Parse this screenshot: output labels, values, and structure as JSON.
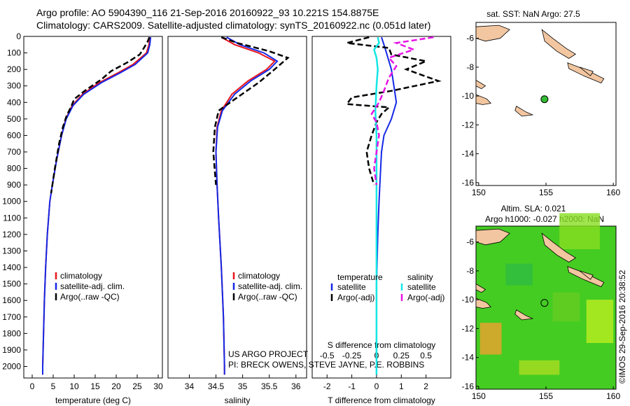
{
  "titles": {
    "line1": "Argo profile: AO 5904390_116 21-Sep-2016 20160922_93 10.221S 154.8875E",
    "line2": "Climatology: CARS2009. Satellite-adjusted climatology: synTS_20160922.nc (0.051d later)"
  },
  "stamp": "©IMOS 29-Sep-2016 20:38:52",
  "colors": {
    "climatology": "#e8141e",
    "satellite": "#1428e6",
    "argo": "#000000",
    "sal_satellite": "#14e6e6",
    "sal_argo": "#e614e6",
    "land": "#f2c6a0",
    "sla_green": "#44cc22",
    "dot": "#33bb33"
  },
  "chart_data": [
    {
      "type": "line",
      "xlabel": "temperature (deg C)",
      "ylabel": "",
      "xlim": [
        -2,
        31
      ],
      "ylim": [
        2070,
        0
      ],
      "xticks": [
        0,
        5,
        10,
        15,
        20,
        25,
        30
      ],
      "yticks": [
        0,
        100,
        200,
        300,
        400,
        500,
        600,
        700,
        800,
        900,
        1000,
        1100,
        1200,
        1300,
        1400,
        1500,
        1600,
        1700,
        1800,
        1900,
        2000
      ],
      "legend": [
        "climatology",
        "satellite-adj. clim.",
        "Argo(..raw -QC)"
      ],
      "series": [
        {
          "name": "climatology",
          "points": [
            [
              28.0,
              5
            ],
            [
              27.8,
              50
            ],
            [
              27.2,
              100
            ],
            [
              24.0,
              170
            ],
            [
              20.5,
              220
            ],
            [
              16.0,
              280
            ],
            [
              12.0,
              350
            ],
            [
              9.5,
              420
            ],
            [
              8.0,
              500
            ],
            [
              7.0,
              600
            ],
            [
              5.8,
              750
            ],
            [
              4.8,
              900
            ],
            [
              4.2,
              1000
            ],
            [
              3.6,
              1200
            ],
            [
              3.2,
              1400
            ],
            [
              2.9,
              1600
            ],
            [
              2.7,
              1800
            ],
            [
              2.5,
              2000
            ],
            [
              2.5,
              2050
            ]
          ]
        },
        {
          "name": "satellite-adj. clim.",
          "points": [
            [
              28.2,
              5
            ],
            [
              28.0,
              50
            ],
            [
              27.5,
              100
            ],
            [
              24.5,
              170
            ],
            [
              21.0,
              220
            ],
            [
              16.5,
              280
            ],
            [
              12.3,
              350
            ],
            [
              9.7,
              420
            ],
            [
              8.1,
              500
            ],
            [
              7.0,
              600
            ],
            [
              5.8,
              750
            ],
            [
              4.8,
              900
            ],
            [
              4.2,
              1000
            ],
            [
              3.6,
              1200
            ],
            [
              3.2,
              1400
            ],
            [
              2.9,
              1600
            ],
            [
              2.7,
              1800
            ],
            [
              2.5,
              2000
            ],
            [
              2.5,
              2050
            ]
          ]
        },
        {
          "name": "Argo(..raw -QC)",
          "points": [
            [
              27.9,
              5
            ],
            [
              27.5,
              30
            ],
            [
              26.6,
              70
            ],
            [
              25.6,
              110
            ],
            [
              22.5,
              160
            ],
            [
              18.8,
              210
            ],
            [
              16.5,
              260
            ],
            [
              12.5,
              330
            ],
            [
              10.0,
              380
            ],
            [
              9.2,
              430
            ],
            [
              8.2,
              480
            ],
            [
              7.3,
              550
            ],
            [
              6.4,
              650
            ],
            [
              5.4,
              800
            ],
            [
              4.5,
              950
            ]
          ]
        }
      ]
    },
    {
      "type": "line",
      "xlabel": "salinity",
      "ylabel": "",
      "xlim": [
        33.6,
        36.2
      ],
      "ylim": [
        2070,
        0
      ],
      "xticks": [
        34,
        34.5,
        35,
        35.5,
        36
      ],
      "legend": [
        "climatology",
        "satellite-adj. clim.",
        "Argo(..raw -QC)"
      ],
      "series": [
        {
          "name": "climatology",
          "points": [
            [
              34.6,
              5
            ],
            [
              34.85,
              50
            ],
            [
              35.3,
              100
            ],
            [
              35.6,
              150
            ],
            [
              35.45,
              200
            ],
            [
              35.1,
              270
            ],
            [
              34.8,
              350
            ],
            [
              34.6,
              450
            ],
            [
              34.52,
              550
            ],
            [
              34.5,
              700
            ],
            [
              34.52,
              900
            ],
            [
              34.55,
              1100
            ],
            [
              34.6,
              1400
            ],
            [
              34.64,
              1700
            ],
            [
              34.66,
              2000
            ],
            [
              34.66,
              2050
            ]
          ]
        },
        {
          "name": "satellite-adj. clim.",
          "points": [
            [
              34.7,
              5
            ],
            [
              34.95,
              50
            ],
            [
              35.4,
              100
            ],
            [
              35.65,
              150
            ],
            [
              35.5,
              200
            ],
            [
              35.15,
              270
            ],
            [
              34.85,
              350
            ],
            [
              34.62,
              450
            ],
            [
              34.53,
              550
            ],
            [
              34.5,
              700
            ],
            [
              34.52,
              900
            ],
            [
              34.55,
              1100
            ],
            [
              34.6,
              1400
            ],
            [
              34.64,
              1700
            ],
            [
              34.66,
              2000
            ],
            [
              34.66,
              2050
            ]
          ]
        },
        {
          "name": "Argo(..raw -QC)",
          "points": [
            [
              34.6,
              5
            ],
            [
              34.9,
              40
            ],
            [
              35.5,
              90
            ],
            [
              35.85,
              130
            ],
            [
              35.6,
              200
            ],
            [
              35.3,
              280
            ],
            [
              34.9,
              370
            ],
            [
              34.55,
              450
            ],
            [
              34.48,
              550
            ],
            [
              34.45,
              700
            ],
            [
              34.5,
              900
            ]
          ]
        }
      ],
      "annotations": [
        "US ARGO PROJECT",
        "PI: BRECK OWENS, STEVE JAYNE, P.E. ROBBINS"
      ]
    },
    {
      "type": "line",
      "xlabel": "T difference from climatology",
      "toplabel": "S difference from climatology",
      "ylabel": "",
      "xlim": [
        -2.6,
        3.0
      ],
      "ylim": [
        2070,
        0
      ],
      "xticks": [
        -2,
        -1,
        0,
        1,
        2
      ],
      "topticks": [
        "-0.5",
        "-0.25",
        "0",
        "0.25",
        "0.5"
      ],
      "legend_headers": [
        "temperature",
        "salinity"
      ],
      "legend": [
        "satellite",
        "Argo(-adj)",
        "satellite",
        "Argo(-adj)"
      ],
      "series": [
        {
          "name": "satellite",
          "points": [
            [
              0.2,
              5
            ],
            [
              0.3,
              50
            ],
            [
              0.4,
              100
            ],
            [
              0.5,
              150
            ],
            [
              0.6,
              200
            ],
            [
              0.7,
              300
            ],
            [
              0.8,
              400
            ],
            [
              0.6,
              500
            ],
            [
              0.3,
              600
            ],
            [
              0.2,
              700
            ],
            [
              0.15,
              850
            ],
            [
              0.1,
              1000
            ],
            [
              0.05,
              1200
            ],
            [
              0.0,
              1500
            ],
            [
              0.0,
              2000
            ],
            [
              0.0,
              2050
            ]
          ]
        },
        {
          "name": "Argo(-adj)",
          "points": [
            [
              -0.3,
              5
            ],
            [
              -1.2,
              40
            ],
            [
              0.5,
              70
            ],
            [
              0.6,
              110
            ],
            [
              2.0,
              150
            ],
            [
              1.2,
              200
            ],
            [
              2.5,
              270
            ],
            [
              0.6,
              330
            ],
            [
              -1.0,
              370
            ],
            [
              -1.2,
              410
            ],
            [
              0.5,
              430
            ],
            [
              0.2,
              470
            ],
            [
              0.0,
              520
            ],
            [
              -0.2,
              600
            ],
            [
              -0.4,
              700
            ],
            [
              -0.3,
              800
            ],
            [
              -0.1,
              900
            ]
          ]
        },
        {
          "name": "satellite",
          "points": [
            [
              0.05,
              5
            ],
            [
              0.1,
              40
            ],
            [
              -0.1,
              80
            ],
            [
              0.0,
              130
            ],
            [
              0.05,
              200
            ],
            [
              0.0,
              300
            ],
            [
              -0.05,
              450
            ],
            [
              0.0,
              600
            ],
            [
              0.0,
              900
            ],
            [
              0.0,
              1200
            ],
            [
              0.0,
              1600
            ],
            [
              0.0,
              2000
            ],
            [
              0.0,
              2050
            ]
          ]
        },
        {
          "name": "Argo(-adj)",
          "points": [
            [
              2.3,
              5
            ],
            [
              0.8,
              40
            ],
            [
              1.5,
              80
            ],
            [
              0.5,
              130
            ],
            [
              0.8,
              180
            ],
            [
              0.5,
              250
            ],
            [
              0.3,
              330
            ],
            [
              0.1,
              400
            ],
            [
              -0.2,
              470
            ],
            [
              0.0,
              520
            ],
            [
              0.1,
              600
            ],
            [
              0.0,
              700
            ],
            [
              -0.1,
              800
            ],
            [
              0.0,
              900
            ]
          ]
        }
      ]
    }
  ],
  "map_top": {
    "title": "sat. SST: NaN Argo: 27.5",
    "xticks": [
      150,
      155,
      160
    ],
    "yticks": [
      -6,
      -8,
      -10,
      -12,
      -14,
      -16
    ],
    "xlim": [
      149.8,
      160.2
    ],
    "ylim": [
      -16.2,
      -4.9
    ],
    "profile": {
      "lon": 154.8875,
      "lat": -10.221
    }
  },
  "map_bottom": {
    "title1": "Altim. SLA: 0.021",
    "title2": "Argo h1000: -0.027 h2000: NaN",
    "xticks": [
      150,
      155,
      160
    ],
    "yticks": [
      -6,
      -8,
      -10,
      -12,
      -14,
      -16
    ],
    "xlim": [
      149.8,
      160.2
    ],
    "ylim": [
      -16.2,
      -4.9
    ],
    "profile": {
      "lon": 154.8875,
      "lat": -10.221
    }
  }
}
